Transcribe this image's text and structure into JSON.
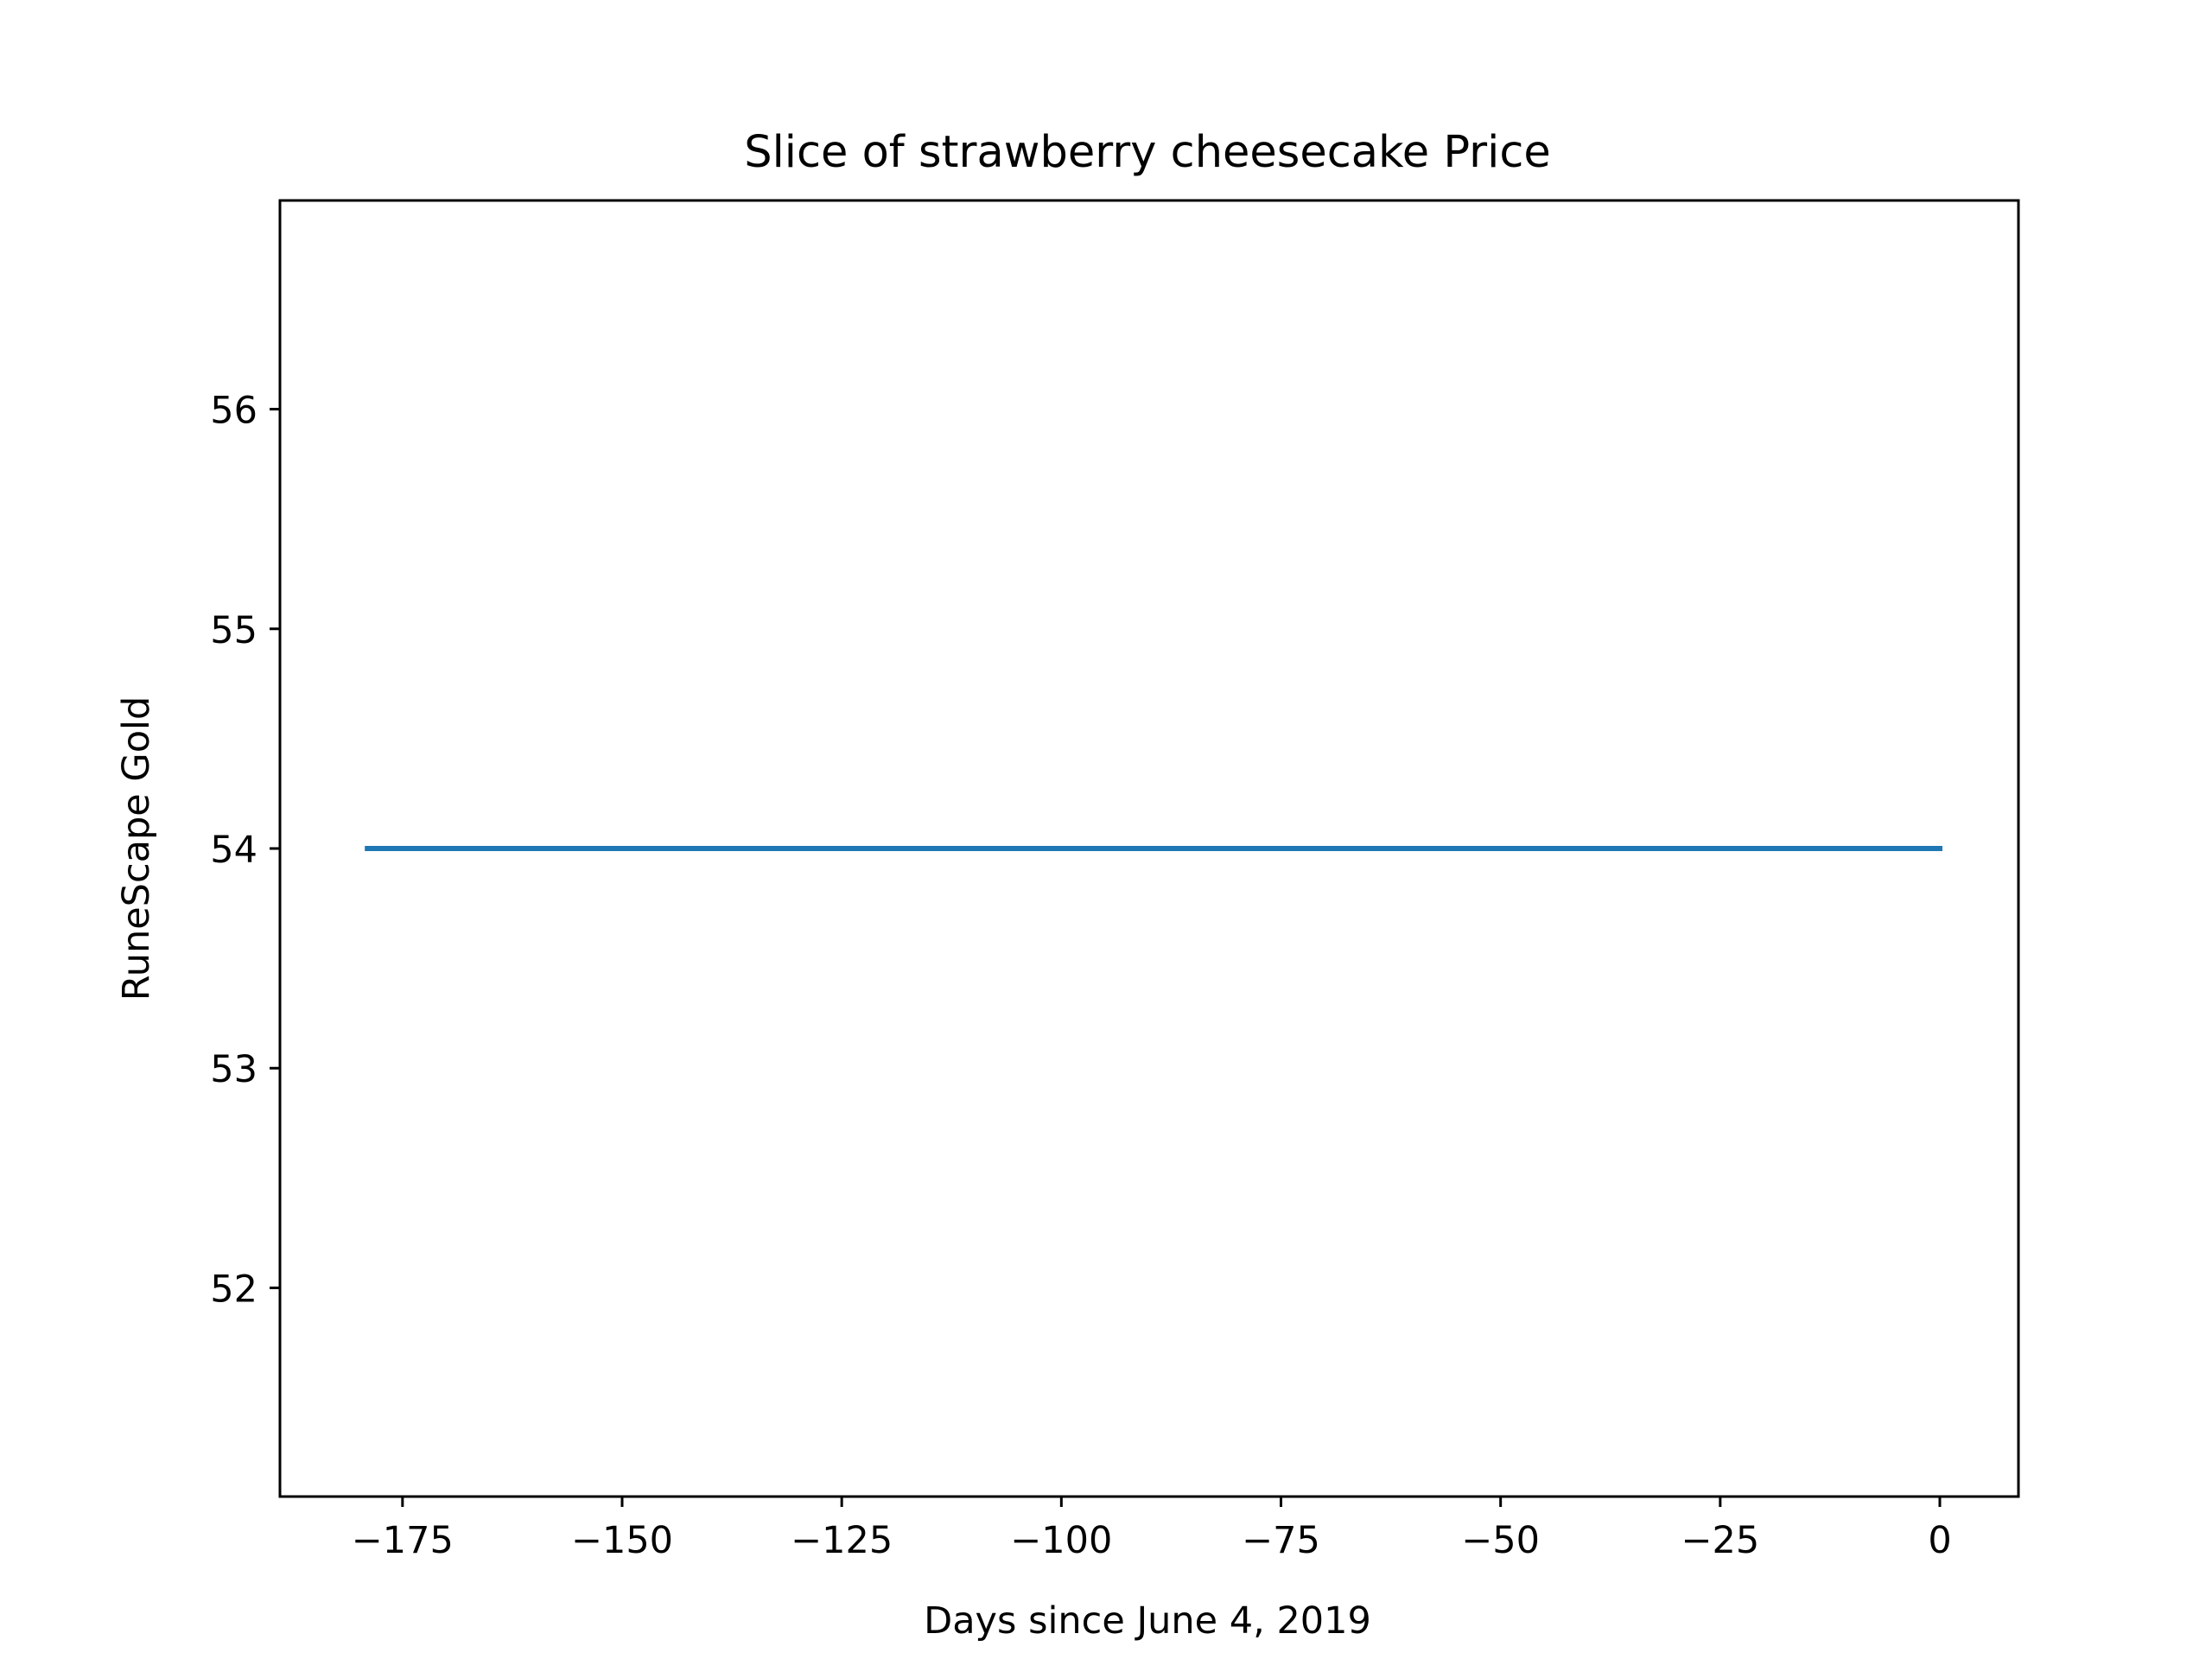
{
  "chart_data": {
    "type": "line",
    "title": "Slice of strawberry cheesecake Price",
    "xlabel": "Days since June 4, 2019",
    "ylabel": "RuneScape Gold",
    "xlim": [
      -188.95,
      8.95
    ],
    "ylim": [
      51.05,
      56.95
    ],
    "xticks": [
      -175,
      -150,
      -125,
      -100,
      -75,
      -50,
      -25,
      0
    ],
    "xtick_labels": [
      "−175",
      "−150",
      "−125",
      "−100",
      "−75",
      "−50",
      "−25",
      "0"
    ],
    "yticks": [
      52,
      53,
      54,
      55,
      56
    ],
    "ytick_labels": [
      "52",
      "53",
      "54",
      "55",
      "56"
    ],
    "grid": false,
    "series": [
      {
        "color": "#1f77b4",
        "x": [
          -179,
          0
        ],
        "y": [
          54,
          54
        ]
      }
    ]
  }
}
